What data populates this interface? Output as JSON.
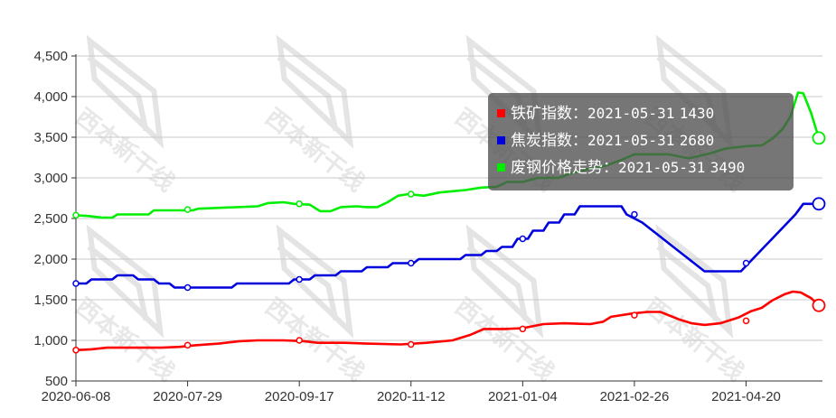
{
  "chart_data": {
    "type": "line",
    "title": "",
    "xlabel": "",
    "ylabel": "",
    "ylim": [
      500,
      4500
    ],
    "yticks": [
      "500",
      "1,000",
      "1,500",
      "2,000",
      "2,500",
      "3,000",
      "3,500",
      "4,000",
      "4,500"
    ],
    "xticks": [
      "2020-06-08",
      "2020-07-29",
      "2020-09-17",
      "2020-11-12",
      "2021-01-04",
      "2021-02-26",
      "2021-04-20"
    ],
    "grid": "horizontal",
    "series": [
      {
        "name": "铁矿指数",
        "color": "#ff0000",
        "values": [
          [
            0,
            880
          ],
          [
            6,
            890
          ],
          [
            12,
            910
          ],
          [
            20,
            910
          ],
          [
            33,
            910
          ],
          [
            40,
            920
          ],
          [
            46,
            940
          ],
          [
            55,
            960
          ],
          [
            63,
            990
          ],
          [
            70,
            1000
          ],
          [
            80,
            1000
          ],
          [
            88,
            990
          ],
          [
            93,
            970
          ],
          [
            103,
            970
          ],
          [
            112,
            960
          ],
          [
            125,
            950
          ],
          [
            135,
            970
          ],
          [
            145,
            1000
          ],
          [
            152,
            1070
          ],
          [
            157,
            1140
          ],
          [
            165,
            1140
          ],
          [
            172,
            1150
          ],
          [
            180,
            1200
          ],
          [
            188,
            1210
          ],
          [
            198,
            1200
          ],
          [
            203,
            1230
          ],
          [
            206,
            1290
          ],
          [
            214,
            1330
          ],
          [
            220,
            1350
          ],
          [
            225,
            1350
          ],
          [
            232,
            1260
          ],
          [
            237,
            1210
          ],
          [
            242,
            1190
          ],
          [
            248,
            1210
          ],
          [
            255,
            1280
          ],
          [
            260,
            1360
          ],
          [
            264,
            1400
          ],
          [
            268,
            1490
          ],
          [
            273,
            1570
          ],
          [
            276,
            1600
          ],
          [
            279,
            1590
          ],
          [
            283,
            1520
          ],
          [
            286,
            1430
          ]
        ],
        "markers": [
          [
            0,
            880
          ],
          [
            43,
            940
          ],
          [
            86,
            1000
          ],
          [
            129,
            950
          ],
          [
            172,
            1140
          ],
          [
            215,
            1310
          ],
          [
            258,
            1240
          ]
        ],
        "end_point": [
          286,
          1430
        ]
      },
      {
        "name": "焦炭指数",
        "color": "#0000dd",
        "values": [
          [
            0,
            1700
          ],
          [
            4,
            1700
          ],
          [
            6,
            1750
          ],
          [
            14,
            1750
          ],
          [
            16,
            1800
          ],
          [
            22,
            1800
          ],
          [
            24,
            1750
          ],
          [
            30,
            1750
          ],
          [
            32,
            1700
          ],
          [
            36,
            1700
          ],
          [
            38,
            1650
          ],
          [
            60,
            1650
          ],
          [
            62,
            1700
          ],
          [
            82,
            1700
          ],
          [
            84,
            1750
          ],
          [
            90,
            1750
          ],
          [
            92,
            1800
          ],
          [
            100,
            1800
          ],
          [
            102,
            1850
          ],
          [
            110,
            1850
          ],
          [
            112,
            1900
          ],
          [
            120,
            1900
          ],
          [
            122,
            1950
          ],
          [
            130,
            1950
          ],
          [
            132,
            2000
          ],
          [
            148,
            2000
          ],
          [
            150,
            2050
          ],
          [
            156,
            2050
          ],
          [
            158,
            2100
          ],
          [
            162,
            2100
          ],
          [
            164,
            2150
          ],
          [
            168,
            2150
          ],
          [
            170,
            2250
          ],
          [
            174,
            2250
          ],
          [
            176,
            2350
          ],
          [
            180,
            2350
          ],
          [
            182,
            2450
          ],
          [
            186,
            2450
          ],
          [
            188,
            2550
          ],
          [
            192,
            2550
          ],
          [
            194,
            2650
          ],
          [
            210,
            2650
          ],
          [
            212,
            2550
          ],
          [
            218,
            2450
          ],
          [
            222,
            2350
          ],
          [
            226,
            2250
          ],
          [
            230,
            2150
          ],
          [
            234,
            2050
          ],
          [
            238,
            1950
          ],
          [
            242,
            1850
          ],
          [
            256,
            1850
          ],
          [
            259,
            1950
          ],
          [
            262,
            2050
          ],
          [
            265,
            2150
          ],
          [
            268,
            2250
          ],
          [
            271,
            2350
          ],
          [
            274,
            2450
          ],
          [
            277,
            2550
          ],
          [
            280,
            2680
          ],
          [
            286,
            2680
          ]
        ],
        "markers": [
          [
            0,
            1700
          ],
          [
            43,
            1650
          ],
          [
            86,
            1750
          ],
          [
            129,
            1950
          ],
          [
            172,
            2250
          ],
          [
            215,
            2550
          ],
          [
            258,
            1950
          ]
        ],
        "end_point": [
          286,
          2680
        ]
      },
      {
        "name": "废钢价格走势",
        "color": "#00ee00",
        "values": [
          [
            0,
            2540
          ],
          [
            5,
            2530
          ],
          [
            10,
            2510
          ],
          [
            14,
            2510
          ],
          [
            16,
            2550
          ],
          [
            28,
            2550
          ],
          [
            30,
            2600
          ],
          [
            45,
            2600
          ],
          [
            47,
            2620
          ],
          [
            70,
            2650
          ],
          [
            74,
            2690
          ],
          [
            80,
            2700
          ],
          [
            84,
            2680
          ],
          [
            90,
            2670
          ],
          [
            94,
            2590
          ],
          [
            98,
            2590
          ],
          [
            102,
            2640
          ],
          [
            108,
            2650
          ],
          [
            112,
            2640
          ],
          [
            116,
            2640
          ],
          [
            120,
            2700
          ],
          [
            124,
            2780
          ],
          [
            128,
            2800
          ],
          [
            134,
            2780
          ],
          [
            140,
            2820
          ],
          [
            150,
            2850
          ],
          [
            156,
            2880
          ],
          [
            162,
            2890
          ],
          [
            166,
            2950
          ],
          [
            172,
            2950
          ],
          [
            178,
            3000
          ],
          [
            186,
            3000
          ],
          [
            190,
            3050
          ],
          [
            196,
            3100
          ],
          [
            204,
            3150
          ],
          [
            210,
            3220
          ],
          [
            215,
            3290
          ],
          [
            222,
            3290
          ],
          [
            228,
            3290
          ],
          [
            236,
            3240
          ],
          [
            244,
            3300
          ],
          [
            250,
            3360
          ],
          [
            258,
            3390
          ],
          [
            264,
            3400
          ],
          [
            268,
            3480
          ],
          [
            272,
            3600
          ],
          [
            275,
            3750
          ],
          [
            278,
            4050
          ],
          [
            280,
            4040
          ],
          [
            283,
            3800
          ],
          [
            286,
            3490
          ]
        ],
        "markers": [
          [
            0,
            2540
          ],
          [
            43,
            2610
          ],
          [
            86,
            2680
          ],
          [
            129,
            2800
          ]
        ],
        "end_point": [
          286,
          3490
        ]
      }
    ]
  },
  "tooltip": {
    "rows": [
      {
        "name": "铁矿指数",
        "sep": "：",
        "date": "2021-05-31",
        "value": "1430",
        "color": "#ff0000"
      },
      {
        "name": "焦炭指数",
        "sep": "：",
        "date": "2021-05-31",
        "value": "2680",
        "color": "#0000dd"
      },
      {
        "name": "废钢价格走势",
        "sep": "：",
        "date": "2021-05-31",
        "value": "3490",
        "color": "#00ee00"
      }
    ]
  },
  "watermark": {
    "text": "西本新干线"
  }
}
